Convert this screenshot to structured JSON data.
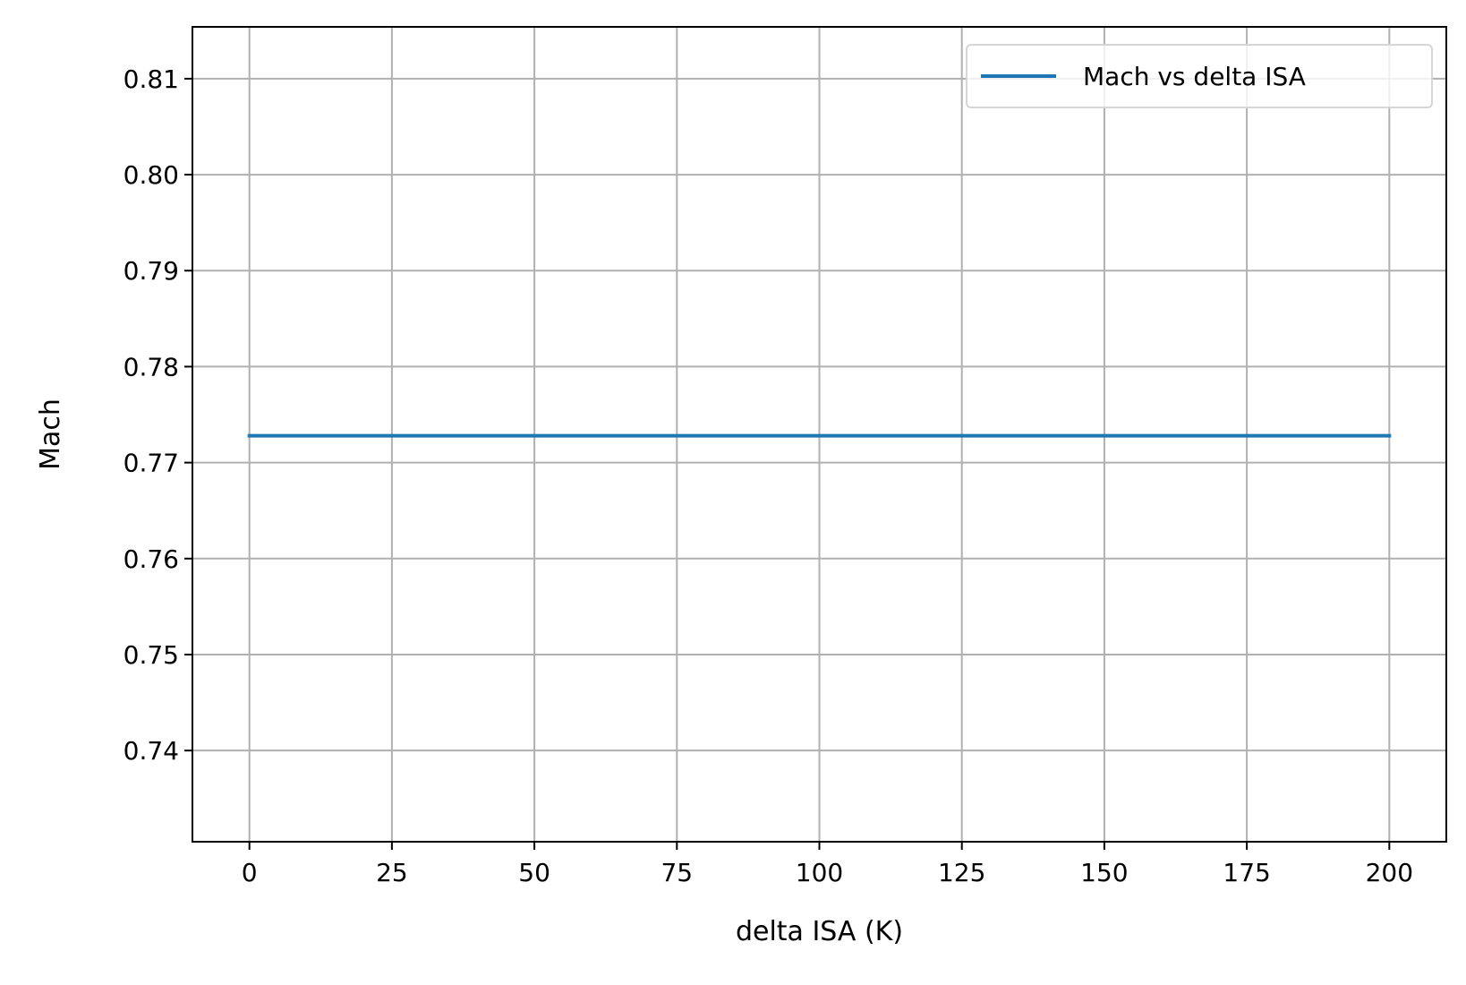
{
  "chart_data": {
    "type": "line",
    "title": "",
    "xlabel": "delta ISA (K)",
    "ylabel": "Mach",
    "xlim": [
      -10,
      210
    ],
    "ylim": [
      0.7305,
      0.8154
    ],
    "x_ticks": [
      0,
      25,
      50,
      75,
      100,
      125,
      150,
      175,
      200
    ],
    "x_tick_labels": [
      "0",
      "25",
      "50",
      "75",
      "100",
      "125",
      "150",
      "175",
      "200"
    ],
    "y_ticks": [
      0.74,
      0.75,
      0.76,
      0.77,
      0.78,
      0.79,
      0.8,
      0.81
    ],
    "y_tick_labels": [
      "0.74",
      "0.75",
      "0.76",
      "0.77",
      "0.78",
      "0.79",
      "0.80",
      "0.81"
    ],
    "grid": true,
    "legend_position": "top-right",
    "series": [
      {
        "name": "Mach vs delta ISA",
        "color": "#1f77b4",
        "x": [
          0,
          25,
          50,
          75,
          100,
          125,
          150,
          175,
          200
        ],
        "y": [
          0.7728,
          0.7728,
          0.7728,
          0.7728,
          0.7728,
          0.7728,
          0.7728,
          0.7728,
          0.7728
        ]
      }
    ]
  }
}
